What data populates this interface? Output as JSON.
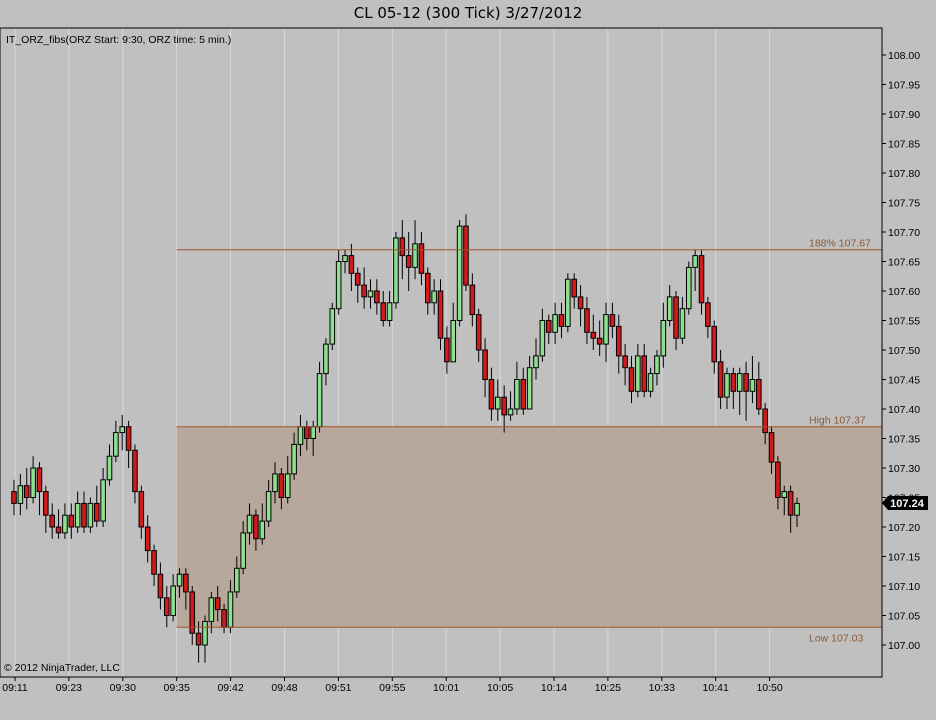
{
  "title": "CL 05-12 (300 Tick)  3/27/2012",
  "indicator_label": "IT_ORZ_fibs(ORZ Start: 9:30, ORZ time: 5 min.)",
  "copyright": "© 2012 NinjaTrader, LLC",
  "price_marker": "107.24",
  "colors": {
    "background": "#c0c0c0",
    "up": "#8ee08e",
    "down": "#d11a1a",
    "wick": "#000000",
    "zone_fill": "#b8a89c",
    "level_line": "#a0522d",
    "grid": "#d8d8d8"
  },
  "chart_data": {
    "type": "candlestick",
    "ylim": [
      106.96,
      108.04
    ],
    "yticks": [
      "108.00",
      "107.95",
      "107.90",
      "107.85",
      "107.80",
      "107.75",
      "107.70",
      "107.65",
      "107.60",
      "107.55",
      "107.50",
      "107.45",
      "107.40",
      "107.35",
      "107.30",
      "107.25",
      "107.20",
      "107.15",
      "107.10",
      "107.05",
      "107.00"
    ],
    "xticks": [
      "09:11",
      "09:23",
      "09:30",
      "09:35",
      "09:42",
      "09:48",
      "09:51",
      "09:55",
      "10:01",
      "10:05",
      "10:14",
      "10:25",
      "10:33",
      "10:41",
      "10:50"
    ],
    "levels": [
      {
        "label": "188% 107.67",
        "value": 107.67
      },
      {
        "label": "High 107.37",
        "value": 107.37
      },
      {
        "label": "Low 107.03",
        "value": 107.03
      }
    ],
    "zone": {
      "top": 107.37,
      "bottom": 107.03,
      "start_tick": "09:35"
    },
    "candles": [
      [
        107.26,
        107.24,
        107.28,
        107.22
      ],
      [
        107.24,
        107.27,
        107.29,
        107.22
      ],
      [
        107.27,
        107.25,
        107.3,
        107.23
      ],
      [
        107.25,
        107.3,
        107.32,
        107.24
      ],
      [
        107.3,
        107.26,
        107.31,
        107.22
      ],
      [
        107.26,
        107.22,
        107.27,
        107.19
      ],
      [
        107.22,
        107.2,
        107.24,
        107.18
      ],
      [
        107.2,
        107.19,
        107.23,
        107.18
      ],
      [
        107.19,
        107.22,
        107.24,
        107.18
      ],
      [
        107.22,
        107.2,
        107.24,
        107.18
      ],
      [
        107.2,
        107.24,
        107.26,
        107.19
      ],
      [
        107.24,
        107.2,
        107.26,
        107.19
      ],
      [
        107.2,
        107.24,
        107.25,
        107.19
      ],
      [
        107.24,
        107.21,
        107.27,
        107.2
      ],
      [
        107.21,
        107.28,
        107.3,
        107.2
      ],
      [
        107.28,
        107.32,
        107.34,
        107.27
      ],
      [
        107.32,
        107.36,
        107.38,
        107.31
      ],
      [
        107.36,
        107.37,
        107.39,
        107.33
      ],
      [
        107.37,
        107.33,
        107.38,
        107.3
      ],
      [
        107.33,
        107.26,
        107.34,
        107.24
      ],
      [
        107.26,
        107.2,
        107.27,
        107.18
      ],
      [
        107.2,
        107.16,
        107.22,
        107.14
      ],
      [
        107.16,
        107.12,
        107.17,
        107.1
      ],
      [
        107.12,
        107.08,
        107.14,
        107.06
      ],
      [
        107.08,
        107.05,
        107.1,
        107.03
      ],
      [
        107.05,
        107.1,
        107.12,
        107.04
      ],
      [
        107.1,
        107.12,
        107.13,
        107.08
      ],
      [
        107.12,
        107.09,
        107.13,
        107.06
      ],
      [
        107.09,
        107.02,
        107.1,
        107.0
      ],
      [
        107.02,
        107.0,
        107.04,
        106.97
      ],
      [
        107.0,
        107.04,
        107.05,
        106.97
      ],
      [
        107.04,
        107.08,
        107.09,
        107.02
      ],
      [
        107.08,
        107.06,
        107.1,
        107.04
      ],
      [
        107.06,
        107.03,
        107.07,
        107.02
      ],
      [
        107.03,
        107.09,
        107.11,
        107.02
      ],
      [
        107.09,
        107.13,
        107.15,
        107.08
      ],
      [
        107.13,
        107.19,
        107.21,
        107.12
      ],
      [
        107.19,
        107.22,
        107.24,
        107.17
      ],
      [
        107.22,
        107.18,
        107.23,
        107.16
      ],
      [
        107.18,
        107.21,
        107.24,
        107.17
      ],
      [
        107.21,
        107.26,
        107.28,
        107.2
      ],
      [
        107.26,
        107.29,
        107.31,
        107.24
      ],
      [
        107.29,
        107.25,
        107.3,
        107.23
      ],
      [
        107.25,
        107.29,
        107.32,
        107.24
      ],
      [
        107.29,
        107.34,
        107.36,
        107.28
      ],
      [
        107.34,
        107.37,
        107.39,
        107.32
      ],
      [
        107.37,
        107.35,
        107.38,
        107.33
      ],
      [
        107.35,
        107.37,
        107.38,
        107.32
      ],
      [
        107.37,
        107.46,
        107.48,
        107.36
      ],
      [
        107.46,
        107.51,
        107.52,
        107.44
      ],
      [
        107.51,
        107.57,
        107.58,
        107.5
      ],
      [
        107.57,
        107.65,
        107.67,
        107.56
      ],
      [
        107.65,
        107.66,
        107.67,
        107.63
      ],
      [
        107.66,
        107.63,
        107.68,
        107.6
      ],
      [
        107.63,
        107.61,
        107.64,
        107.58
      ],
      [
        107.61,
        107.59,
        107.64,
        107.57
      ],
      [
        107.59,
        107.6,
        107.62,
        107.57
      ],
      [
        107.6,
        107.58,
        107.62,
        107.56
      ],
      [
        107.58,
        107.55,
        107.6,
        107.54
      ],
      [
        107.55,
        107.58,
        107.6,
        107.54
      ],
      [
        107.58,
        107.69,
        107.7,
        107.57
      ],
      [
        107.69,
        107.66,
        107.72,
        107.62
      ],
      [
        107.66,
        107.64,
        107.7,
        107.6
      ],
      [
        107.64,
        107.68,
        107.72,
        107.62
      ],
      [
        107.68,
        107.63,
        107.7,
        107.61
      ],
      [
        107.63,
        107.58,
        107.64,
        107.56
      ],
      [
        107.58,
        107.6,
        107.62,
        107.56
      ],
      [
        107.6,
        107.52,
        107.62,
        107.5
      ],
      [
        107.52,
        107.48,
        107.54,
        107.46
      ],
      [
        107.48,
        107.55,
        107.58,
        107.48
      ],
      [
        107.55,
        107.71,
        107.72,
        107.54
      ],
      [
        107.71,
        107.61,
        107.73,
        107.6
      ],
      [
        107.61,
        107.56,
        107.63,
        107.54
      ],
      [
        107.56,
        107.5,
        107.57,
        107.48
      ],
      [
        107.5,
        107.45,
        107.52,
        107.42
      ],
      [
        107.45,
        107.4,
        107.47,
        107.38
      ],
      [
        107.4,
        107.42,
        107.45,
        107.38
      ],
      [
        107.42,
        107.39,
        107.44,
        107.36
      ],
      [
        107.39,
        107.4,
        107.43,
        107.38
      ],
      [
        107.4,
        107.45,
        107.48,
        107.39
      ],
      [
        107.45,
        107.4,
        107.47,
        107.39
      ],
      [
        107.4,
        107.47,
        107.49,
        107.4
      ],
      [
        107.47,
        107.49,
        107.52,
        107.45
      ],
      [
        107.49,
        107.55,
        107.57,
        107.48
      ],
      [
        107.55,
        107.53,
        107.56,
        107.51
      ],
      [
        107.53,
        107.56,
        107.58,
        107.51
      ],
      [
        107.56,
        107.54,
        107.58,
        107.52
      ],
      [
        107.54,
        107.62,
        107.63,
        107.53
      ],
      [
        107.62,
        107.59,
        107.63,
        107.57
      ],
      [
        107.59,
        107.57,
        107.61,
        107.54
      ],
      [
        107.57,
        107.53,
        107.59,
        107.51
      ],
      [
        107.53,
        107.52,
        107.56,
        107.5
      ],
      [
        107.52,
        107.51,
        107.55,
        107.49
      ],
      [
        107.51,
        107.56,
        107.58,
        107.48
      ],
      [
        107.56,
        107.54,
        107.58,
        107.52
      ],
      [
        107.54,
        107.49,
        107.56,
        107.46
      ],
      [
        107.49,
        107.47,
        107.51,
        107.44
      ],
      [
        107.47,
        107.43,
        107.49,
        107.41
      ],
      [
        107.43,
        107.49,
        107.51,
        107.42
      ],
      [
        107.49,
        107.43,
        107.51,
        107.42
      ],
      [
        107.43,
        107.46,
        107.47,
        107.42
      ],
      [
        107.46,
        107.49,
        107.5,
        107.44
      ],
      [
        107.49,
        107.55,
        107.58,
        107.47
      ],
      [
        107.55,
        107.59,
        107.61,
        107.54
      ],
      [
        107.59,
        107.52,
        107.6,
        107.5
      ],
      [
        107.52,
        107.57,
        107.59,
        107.51
      ],
      [
        107.57,
        107.64,
        107.65,
        107.56
      ],
      [
        107.64,
        107.66,
        107.67,
        107.6
      ],
      [
        107.66,
        107.58,
        107.67,
        107.56
      ],
      [
        107.58,
        107.54,
        107.59,
        107.52
      ],
      [
        107.54,
        107.48,
        107.55,
        107.46
      ],
      [
        107.48,
        107.42,
        107.5,
        107.4
      ],
      [
        107.42,
        107.46,
        107.47,
        107.4
      ],
      [
        107.46,
        107.43,
        107.47,
        107.4
      ],
      [
        107.43,
        107.46,
        107.47,
        107.39
      ],
      [
        107.46,
        107.43,
        107.48,
        107.38
      ],
      [
        107.43,
        107.45,
        107.49,
        107.41
      ],
      [
        107.45,
        107.4,
        107.48,
        107.39
      ],
      [
        107.4,
        107.36,
        107.41,
        107.34
      ],
      [
        107.36,
        107.31,
        107.37,
        107.29
      ],
      [
        107.31,
        107.25,
        107.32,
        107.23
      ],
      [
        107.25,
        107.26,
        107.27,
        107.22
      ],
      [
        107.26,
        107.22,
        107.27,
        107.19
      ],
      [
        107.22,
        107.24,
        107.25,
        107.2
      ]
    ]
  }
}
